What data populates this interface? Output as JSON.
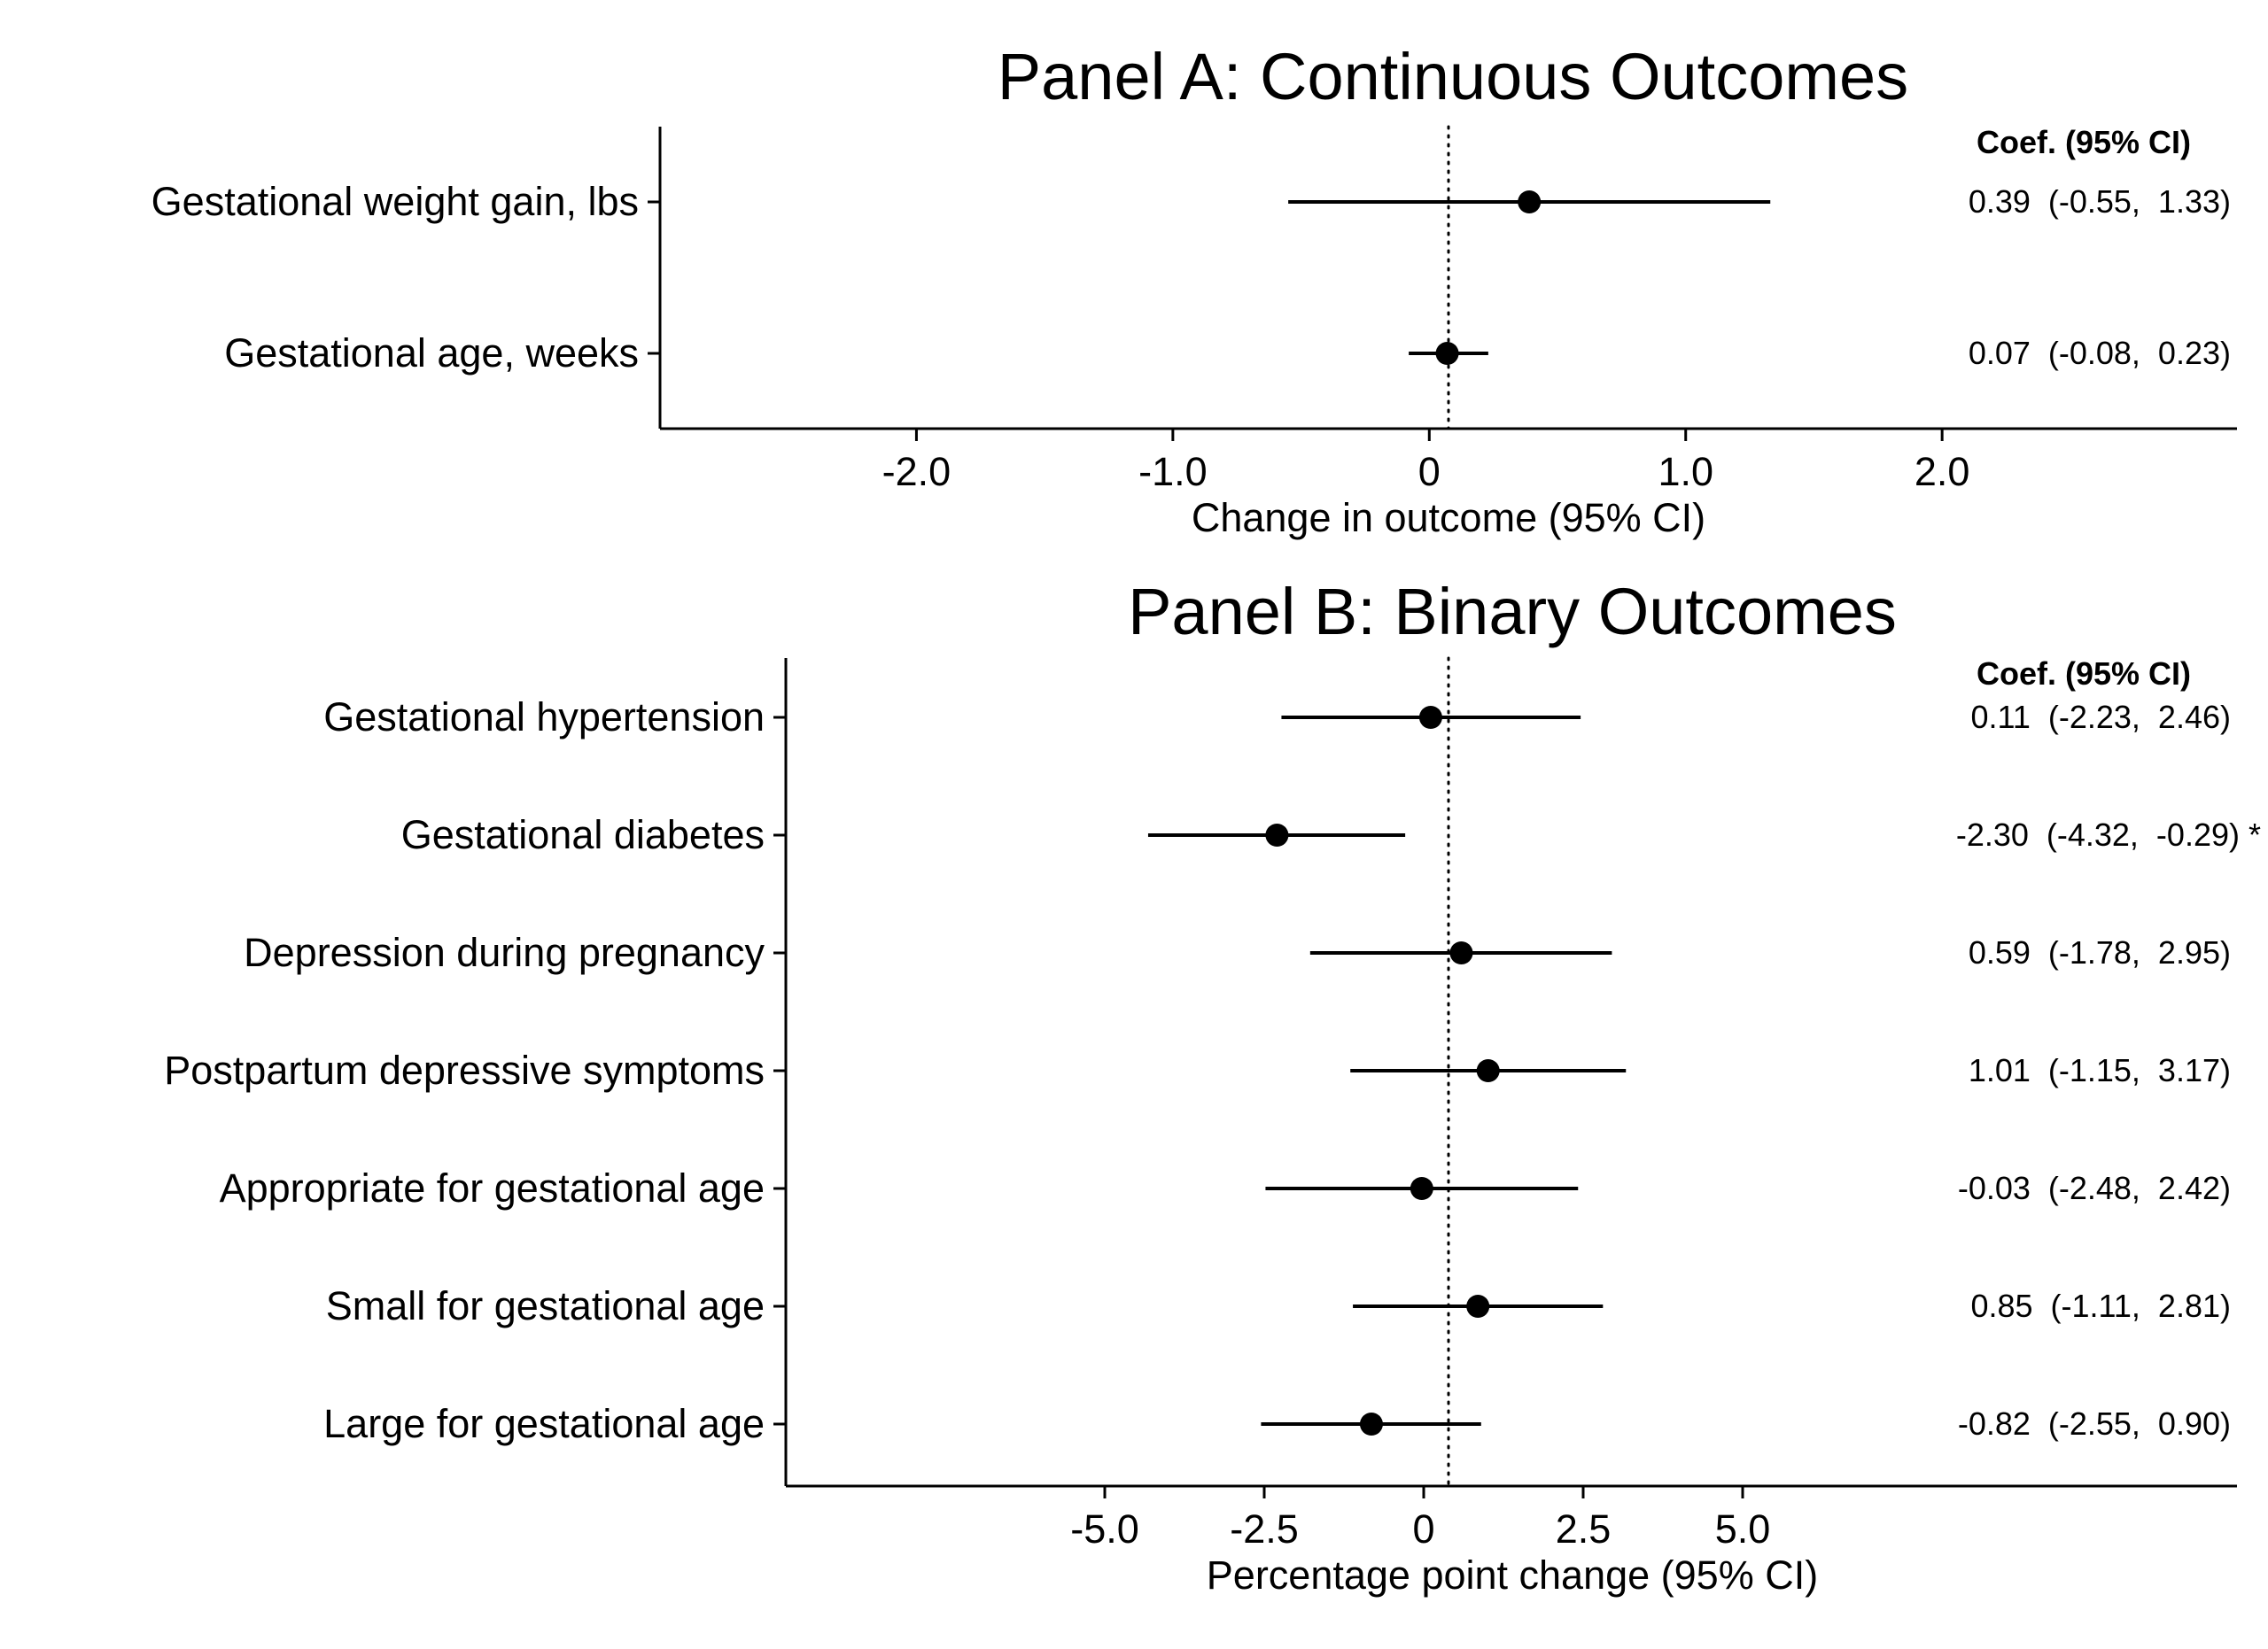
{
  "chart_data": [
    {
      "type": "scatter",
      "title": "Panel A: Continuous Outcomes",
      "xlabel": "Change in outcome (95% CI)",
      "ylabel": "",
      "xlim": [
        -3.0,
        3.15
      ],
      "x_ticks": [
        -2.0,
        -1.0,
        0,
        1.0,
        2.0
      ],
      "x_tick_labels": [
        "-2.0",
        "-1.0",
        "0",
        "1.0",
        "2.0"
      ],
      "reference_line": 0,
      "column_header": "Coef. (95% CI)",
      "categories": [
        "Gestational weight gain, lbs",
        "Gestational age, weeks"
      ],
      "estimates": [
        0.39,
        0.07
      ],
      "ci_lower": [
        -0.55,
        -0.08
      ],
      "ci_upper": [
        1.33,
        0.23
      ],
      "coef_labels": [
        "0.39  (-0.55,  1.33)",
        "0.07  (-0.08,  0.23)"
      ]
    },
    {
      "type": "scatter",
      "title": "Panel B: Binary Outcomes",
      "xlabel": "Percentage point change (95% CI)",
      "ylabel": "",
      "xlim": [
        -10.0,
        12.75
      ],
      "x_ticks": [
        -5.0,
        -2.5,
        0,
        2.5,
        5.0
      ],
      "x_tick_labels": [
        "-5.0",
        "-2.5",
        "0",
        "2.5",
        "5.0"
      ],
      "reference_line": 0,
      "column_header": "Coef. (95% CI)",
      "categories": [
        "Gestational hypertension",
        "Gestational diabetes",
        "Depression during pregnancy",
        "Postpartum depressive symptoms",
        "Appropriate for gestational age",
        "Small for gestational age",
        "Large for gestational age"
      ],
      "estimates": [
        0.11,
        -2.3,
        0.59,
        1.01,
        -0.03,
        0.85,
        -0.82
      ],
      "ci_lower": [
        -2.23,
        -4.32,
        -1.78,
        -1.15,
        -2.48,
        -1.11,
        -2.55
      ],
      "ci_upper": [
        2.46,
        -0.29,
        2.95,
        3.17,
        2.42,
        2.81,
        0.9
      ],
      "coef_labels": [
        "0.11  (-2.23,  2.46)",
        "-2.30  (-4.32,  -0.29) *",
        "0.59  (-1.78,  2.95)",
        "1.01  (-1.15,  3.17)",
        "-0.03  (-2.48,  2.42)",
        "0.85  (-1.11,  2.81)",
        "-0.82  (-2.55,  0.90)"
      ]
    }
  ]
}
